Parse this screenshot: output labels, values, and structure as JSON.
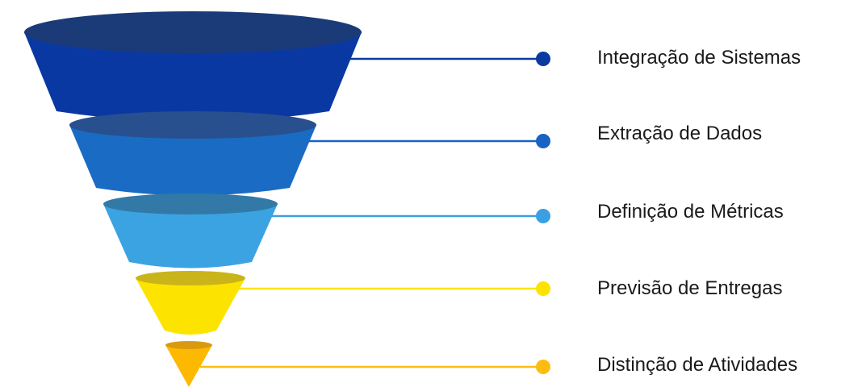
{
  "funnel": {
    "stages": [
      {
        "label": "Integração de Sistemas",
        "color": "#0a38a3",
        "top_color": "#1b3a78",
        "dot_color": "#0a3aa0",
        "line_color": "#0a3aa0"
      },
      {
        "label": "Extração de Dados",
        "color": "#1a6bc4",
        "top_color": "#28508f",
        "dot_color": "#1a63c2",
        "line_color": "#1a63c2"
      },
      {
        "label": "Definição de Métricas",
        "color": "#3ba3e2",
        "top_color": "#3379a8",
        "dot_color": "#3ba0e2",
        "line_color": "#3ba0e2"
      },
      {
        "label": "Previsão de Entregas",
        "color": "#fde300",
        "top_color": "#c9b41a",
        "dot_color": "#fde300",
        "line_color": "#fde300"
      },
      {
        "label": "Distinção de Atividades",
        "color": "#fdb900",
        "top_color": "#d99a10",
        "dot_color": "#fdbd10",
        "line_color": "#fdbd10"
      }
    ]
  }
}
